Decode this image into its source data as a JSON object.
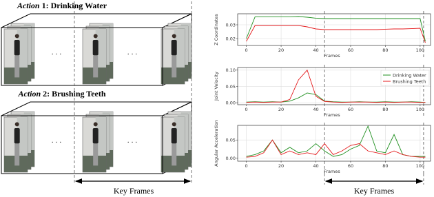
{
  "left": {
    "actions": [
      {
        "prefix": "Action",
        "title": "1: Drinking Water"
      },
      {
        "prefix": "Action",
        "title": "2: Brushing Teeth"
      }
    ],
    "ellipsis": "· · ·",
    "key_frames_label": "Key Frames"
  },
  "key_frames_label": "Key Frames",
  "chart_data": [
    {
      "type": "line",
      "ylabel": "Z Coordinates",
      "xlabel": "Frames",
      "x": [
        0,
        5,
        10,
        15,
        20,
        25,
        30,
        35,
        40,
        45,
        50,
        55,
        60,
        65,
        70,
        75,
        80,
        85,
        90,
        95,
        100,
        103
      ],
      "xlim": [
        -5,
        106
      ],
      "xticks": [
        0,
        20,
        40,
        60,
        80,
        100
      ],
      "ylim": [
        0.015,
        0.038
      ],
      "yticks": [
        0.02,
        0.03
      ],
      "grid": true,
      "vlines": [
        45,
        102
      ],
      "series": [
        {
          "name": "Drinking Water",
          "color": "#1f8f1f",
          "values": [
            0.02,
            0.0358,
            0.0358,
            0.0358,
            0.0358,
            0.0358,
            0.036,
            0.0355,
            0.0348,
            0.0345,
            0.0345,
            0.0345,
            0.0345,
            0.0345,
            0.0345,
            0.0345,
            0.0345,
            0.0345,
            0.0345,
            0.0345,
            0.0345,
            0.018
          ]
        },
        {
          "name": "Brushing Teeth",
          "color": "#e41a1c",
          "values": [
            0.018,
            0.0295,
            0.0295,
            0.0295,
            0.0295,
            0.0295,
            0.0295,
            0.0285,
            0.027,
            0.0265,
            0.0265,
            0.0265,
            0.0265,
            0.0265,
            0.0265,
            0.0265,
            0.0268,
            0.027,
            0.027,
            0.0272,
            0.0275,
            0.017
          ]
        }
      ]
    },
    {
      "type": "line",
      "ylabel": "Joint Velocity",
      "xlabel": "Frames",
      "x": [
        0,
        5,
        10,
        15,
        20,
        25,
        30,
        35,
        40,
        45,
        50,
        55,
        60,
        65,
        70,
        75,
        80,
        85,
        90,
        95,
        100,
        103
      ],
      "xlim": [
        -5,
        106
      ],
      "xticks": [
        0,
        20,
        40,
        60,
        80,
        100
      ],
      "ylim": [
        -0.006,
        0.108
      ],
      "yticks": [
        {
          "value": 0,
          "label": "0.00"
        },
        0.05,
        {
          "value": 0.1,
          "label": "0.10"
        }
      ],
      "grid": true,
      "vlines": [
        45,
        102
      ],
      "legend": "upper right",
      "series": [
        {
          "name": "Drinking Water",
          "color": "#1f8f1f",
          "values": [
            0.002,
            0.003,
            0.002,
            0.003,
            0.002,
            0.005,
            0.015,
            0.03,
            0.025,
            0.005,
            0.003,
            0.002,
            0.002,
            0.003,
            0.002,
            0.002,
            0.003,
            0.002,
            0.002,
            0.003,
            0.002,
            0.001
          ]
        },
        {
          "name": "Brushing Teeth",
          "color": "#e41a1c",
          "values": [
            0.001,
            0.002,
            0.001,
            0.002,
            0.002,
            0.01,
            0.07,
            0.1,
            0.02,
            0.004,
            0.002,
            0.001,
            0.002,
            0.002,
            0.002,
            0.001,
            0.002,
            0.001,
            0.002,
            0.002,
            0.001,
            0.001
          ]
        }
      ]
    },
    {
      "type": "line",
      "ylabel": "Angular Acceleration",
      "xlabel": "Frames",
      "x": [
        0,
        5,
        10,
        15,
        20,
        25,
        30,
        35,
        40,
        45,
        50,
        55,
        60,
        65,
        70,
        75,
        80,
        85,
        90,
        95,
        100,
        103
      ],
      "xlim": [
        -5,
        106
      ],
      "xticks": [
        0,
        20,
        40,
        60,
        80,
        100
      ],
      "ylim": [
        -0.008,
        0.09
      ],
      "yticks": [
        {
          "value": 0,
          "label": "0.00"
        },
        0.05
      ],
      "grid": true,
      "vlines": [
        45,
        102
      ],
      "series": [
        {
          "name": "Drinking Water",
          "color": "#1f8f1f",
          "values": [
            0.005,
            0.01,
            0.02,
            0.05,
            0.015,
            0.03,
            0.015,
            0.02,
            0.04,
            0.02,
            0.005,
            0.01,
            0.025,
            0.035,
            0.088,
            0.02,
            0.015,
            0.065,
            0.01,
            0.005,
            0.005,
            0.005
          ]
        },
        {
          "name": "Brushing Teeth",
          "color": "#e41a1c",
          "values": [
            0.003,
            0.005,
            0.015,
            0.05,
            0.01,
            0.02,
            0.01,
            0.015,
            0.01,
            0.04,
            0.01,
            0.02,
            0.035,
            0.04,
            0.02,
            0.015,
            0.01,
            0.02,
            0.01,
            0.005,
            0.003,
            0.003
          ]
        }
      ]
    }
  ]
}
